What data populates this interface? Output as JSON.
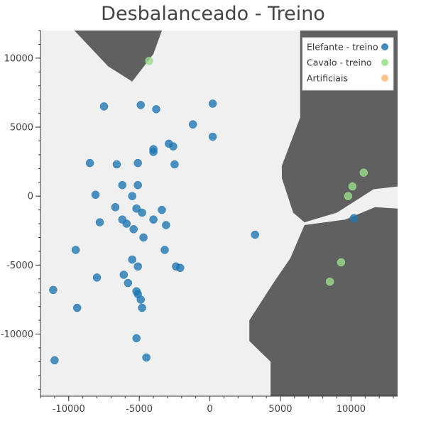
{
  "chart_data": {
    "type": "scatter",
    "title": "Desbalanceado - Treino",
    "xlabel": "",
    "ylabel": "",
    "xlim": [
      -12000,
      13300
    ],
    "ylim": [
      -14500,
      12000
    ],
    "x_ticks": [
      -10000,
      -5000,
      0,
      5000,
      10000
    ],
    "x_tick_labels": [
      "-10000",
      "-5000",
      "0",
      "5000",
      "10000"
    ],
    "y_ticks": [
      -10000,
      -5000,
      0,
      5000,
      10000
    ],
    "y_tick_labels": [
      "-10000",
      "-5000",
      "0",
      "5000",
      "10000"
    ],
    "grid": false,
    "legend_position": "top-right",
    "background_colors": {
      "light_region": "#f0f0f0",
      "dark_region": "#606060"
    },
    "decision_regions": {
      "dark": [
        [
          [
            -9600,
            12000
          ],
          [
            -3400,
            12000
          ],
          [
            -4000,
            10300
          ],
          [
            -5500,
            8300
          ],
          [
            -7200,
            9400
          ]
        ],
        [
          [
            6400,
            12000
          ],
          [
            13300,
            12000
          ],
          [
            13300,
            700
          ],
          [
            11600,
            500
          ],
          [
            9000,
            -1200
          ],
          [
            6700,
            -1900
          ],
          [
            5900,
            -1200
          ],
          [
            5100,
            1300
          ],
          [
            5100,
            2200
          ],
          [
            6400,
            5700
          ],
          [
            6400,
            12000
          ]
        ],
        [
          [
            6700,
            -2100
          ],
          [
            9600,
            -1700
          ],
          [
            11700,
            -800
          ],
          [
            13300,
            -900
          ],
          [
            13300,
            -14500
          ],
          [
            4300,
            -14500
          ],
          [
            4300,
            -12000
          ],
          [
            2800,
            -10500
          ],
          [
            2800,
            -9000
          ],
          [
            4500,
            -6300
          ],
          [
            5700,
            -4500
          ],
          [
            6700,
            -2100
          ]
        ]
      ]
    },
    "series": [
      {
        "name": "Elefante - treino",
        "color": "#1f77b4",
        "points": [
          [
            -7500,
            6500
          ],
          [
            -4900,
            6600
          ],
          [
            -3800,
            6300
          ],
          [
            200,
            6700
          ],
          [
            -1200,
            5200
          ],
          [
            200,
            4300
          ],
          [
            -2900,
            3800
          ],
          [
            -2600,
            3600
          ],
          [
            -4000,
            3400
          ],
          [
            -4000,
            3200
          ],
          [
            -8500,
            2400
          ],
          [
            -6600,
            2300
          ],
          [
            -5100,
            2400
          ],
          [
            -2500,
            2300
          ],
          [
            -6200,
            800
          ],
          [
            -5100,
            800
          ],
          [
            -8100,
            100
          ],
          [
            -5500,
            0
          ],
          [
            -6700,
            -800
          ],
          [
            -5200,
            -900
          ],
          [
            -4800,
            -1200
          ],
          [
            -3400,
            -1000
          ],
          [
            -7800,
            -1900
          ],
          [
            -6200,
            -1700
          ],
          [
            -5900,
            -2000
          ],
          [
            -4000,
            -1700
          ],
          [
            -3100,
            -2100
          ],
          [
            -5400,
            -2400
          ],
          [
            -4700,
            -3000
          ],
          [
            3200,
            -2800
          ],
          [
            10200,
            -1600
          ],
          [
            -9500,
            -3900
          ],
          [
            -3200,
            -3900
          ],
          [
            -5500,
            -4600
          ],
          [
            -5100,
            -5100
          ],
          [
            -2400,
            -5100
          ],
          [
            -2100,
            -5200
          ],
          [
            -6100,
            -5700
          ],
          [
            -8000,
            -5900
          ],
          [
            -5800,
            -6300
          ],
          [
            -5200,
            -6900
          ],
          [
            -5100,
            -7100
          ],
          [
            -4900,
            -7500
          ],
          [
            -11100,
            -6800
          ],
          [
            -9400,
            -8100
          ],
          [
            -4800,
            -8100
          ],
          [
            -5200,
            -10300
          ],
          [
            -4500,
            -11700
          ],
          [
            -11000,
            -11900
          ]
        ]
      },
      {
        "name": "Cavalo - treino",
        "color": "#98df8a",
        "points": [
          [
            -4300,
            9800
          ],
          [
            10900,
            1700
          ],
          [
            10100,
            700
          ],
          [
            9800,
            0
          ],
          [
            9300,
            -4800
          ],
          [
            8500,
            -6200
          ]
        ]
      },
      {
        "name": "Artificiais",
        "color": "#ffbb78",
        "points": []
      }
    ]
  }
}
